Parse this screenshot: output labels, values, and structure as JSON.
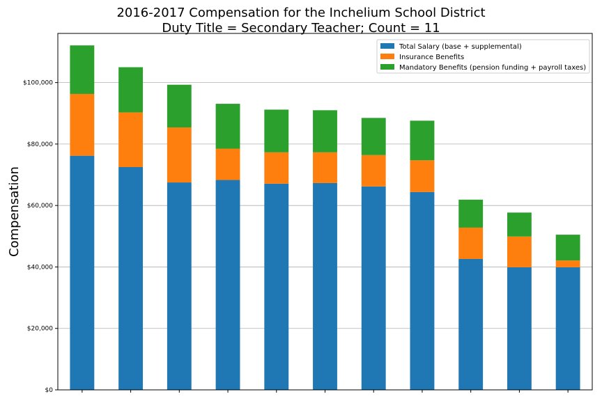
{
  "chart_data": {
    "type": "bar",
    "stacked": true,
    "title": "2016-2017 Compensation for the Inchelium School District",
    "subtitle": "Duty Title = Secondary Teacher; Count = 11",
    "xlabel": "",
    "ylabel": "Compensation",
    "ylim": [
      0,
      116000
    ],
    "yticks": [
      0,
      20000,
      40000,
      60000,
      80000,
      100000
    ],
    "ytick_labels": [
      "$0",
      "$20,000",
      "$40,000",
      "$60,000",
      "$80,000",
      "$100,000"
    ],
    "grid": true,
    "legend_position": "top-right",
    "categories": [
      "",
      "",
      "",
      "",
      "",
      "",
      "",
      "",
      "",
      "",
      ""
    ],
    "series": [
      {
        "name": "Total Salary (base + supplemental)",
        "color": "#1f77b4",
        "values": [
          76200,
          72500,
          67500,
          68300,
          67100,
          67300,
          66200,
          64400,
          42600,
          39900,
          39900
        ]
      },
      {
        "name": "Insurance Benefits",
        "color": "#ff7f0e",
        "values": [
          20100,
          17800,
          17900,
          10200,
          10200,
          10000,
          10200,
          10300,
          10200,
          10000,
          2200
        ]
      },
      {
        "name": "Mandatory Benefits (pension funding + payroll taxes)",
        "color": "#2ca02c",
        "values": [
          15800,
          14700,
          13900,
          14600,
          13900,
          13700,
          12100,
          12900,
          9100,
          7800,
          8400
        ]
      }
    ]
  }
}
